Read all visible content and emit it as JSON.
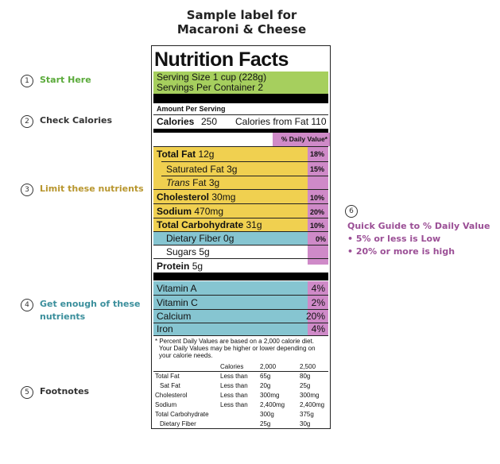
{
  "title_line1": "Sample label for",
  "title_line2": "Macaroni & Cheese",
  "annotations": [
    {
      "num": "1",
      "text": "Start Here",
      "color": "#5aaa3a"
    },
    {
      "num": "2",
      "text": "Check Calories",
      "color": "#333333"
    },
    {
      "num": "3",
      "text": "Limit these nutrients",
      "color": "#b8962e"
    },
    {
      "num": "4",
      "text_line1": "Get enough of these",
      "text_line2": "nutrients",
      "color": "#3b8f9c"
    },
    {
      "num": "5",
      "text": "Footnotes",
      "color": "#333333"
    },
    {
      "num": "6",
      "color": "#333333"
    }
  ],
  "guide": {
    "title": "Quick Guide to % Daily Value",
    "line1": "• 5% or less is Low",
    "line2": "• 20% or more is high",
    "color": "#9b4f96"
  },
  "colors": {
    "green": "#a6cf5e",
    "yellow": "#f0d050",
    "blue": "#86c5d1",
    "pink": "#cf8ac8"
  },
  "label": {
    "heading": "Nutrition Facts",
    "serving_size": "Serving Size 1 cup (228g)",
    "servings_per_container": "Servings Per Container 2",
    "amount_per_serving": "Amount Per Serving",
    "calories_label": "Calories",
    "calories_value": "250",
    "calories_fat": "Calories from Fat 110",
    "dv_header": "% Daily Value*",
    "nutrients": [
      {
        "name": "Total Fat",
        "amount": "12g",
        "dv": "18%"
      },
      {
        "name": "Saturated Fat",
        "amount": "3g",
        "dv": "15%"
      },
      {
        "name": "Trans",
        "suffix": "Fat 3g",
        "dv": ""
      },
      {
        "name": "Cholesterol",
        "amount": "30mg",
        "dv": "10%"
      },
      {
        "name": "Sodium",
        "amount": "470mg",
        "dv": "20%"
      },
      {
        "name": "Total Carbohydrate",
        "amount": "31g",
        "dv": "10%"
      },
      {
        "name": "Dietary Fiber",
        "amount": "0g",
        "dv": "0%"
      },
      {
        "name": "Sugars",
        "amount": "5g",
        "dv": ""
      },
      {
        "name": "Protein",
        "amount": "5g",
        "dv": ""
      }
    ],
    "vitamins": [
      {
        "name": "Vitamin A",
        "dv": "4%"
      },
      {
        "name": "Vitamin C",
        "dv": "2%"
      },
      {
        "name": "Calcium",
        "dv": "20%"
      },
      {
        "name": "Iron",
        "dv": "4%"
      }
    ],
    "footnote_1": "* Percent Daily Values are based on a 2,000 calorie diet.",
    "footnote_2": "Your Daily Values may be higher or lower depending on",
    "footnote_3": "your calorie needs.",
    "table_header": {
      "col0": "",
      "col1": "Calories",
      "col2": "2,000",
      "col3": "2,500"
    },
    "table_rows": [
      {
        "c0": "Total Fat",
        "c1": "Less than",
        "c2": "65g",
        "c3": "80g"
      },
      {
        "c0": "Sat Fat",
        "c1": "Less than",
        "c2": "20g",
        "c3": "25g"
      },
      {
        "c0": "Cholesterol",
        "c1": "Less than",
        "c2": "300mg",
        "c3": "300mg"
      },
      {
        "c0": "Sodium",
        "c1": "Less than",
        "c2": "2,400mg",
        "c3": "2,400mg"
      },
      {
        "c0": "Total Carbohydrate",
        "c1": "",
        "c2": "300g",
        "c3": "375g"
      },
      {
        "c0": "Dietary Fiber",
        "c1": "",
        "c2": "25g",
        "c3": "30g"
      }
    ]
  }
}
